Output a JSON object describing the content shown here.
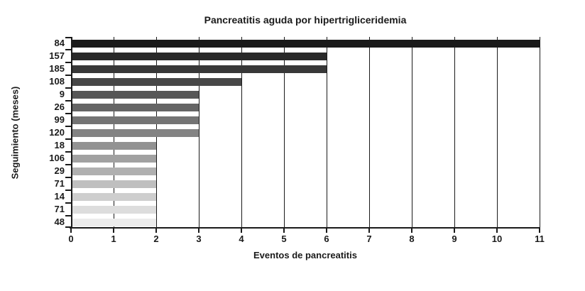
{
  "chart_data": {
    "type": "bar",
    "orientation": "horizontal",
    "title": "Pancreatitis aguda por hipertrigliceridemia",
    "xlabel": "Eventos de pancreatitis",
    "ylabel": "Seguimiento (meses)",
    "categories": [
      "84",
      "157",
      "185",
      "108",
      "9",
      "26",
      "99",
      "120",
      "18",
      "106",
      "29",
      "71",
      "14",
      "71",
      "48"
    ],
    "values": [
      11,
      6,
      6,
      4,
      3,
      3,
      3,
      3,
      2,
      2,
      2,
      2,
      2,
      2,
      2
    ],
    "bar_colors": [
      "#1a1a1a",
      "#292929",
      "#383838",
      "#474747",
      "#565656",
      "#656565",
      "#747474",
      "#838383",
      "#929292",
      "#a1a1a1",
      "#b0b0b0",
      "#bfbfbf",
      "#cecece",
      "#dddddd",
      "#ececec"
    ],
    "axis_color": "#1a1a1a",
    "xlim": [
      0,
      11
    ],
    "xticks": [
      0,
      1,
      2,
      3,
      4,
      5,
      6,
      7,
      8,
      9,
      10,
      11
    ],
    "grid": "vertical-gridlines-on",
    "legend": "none"
  }
}
